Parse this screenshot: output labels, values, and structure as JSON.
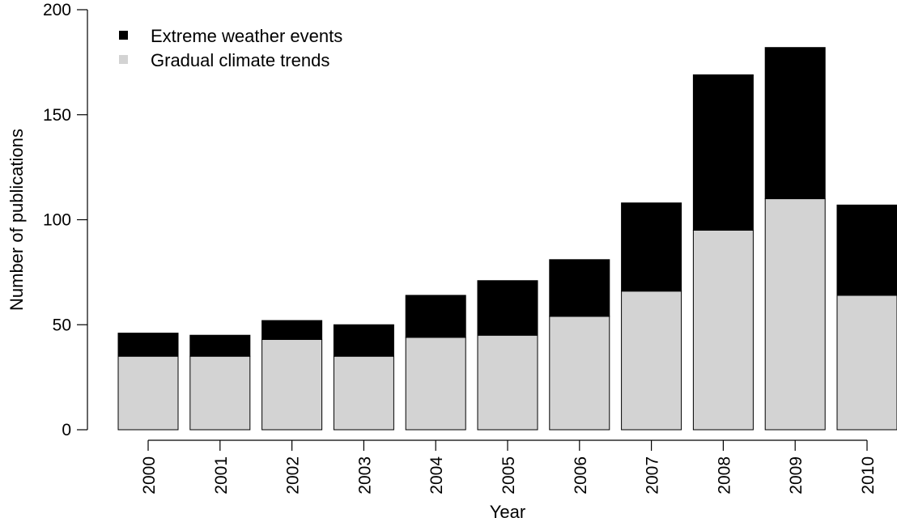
{
  "chart_data": {
    "type": "bar",
    "stacked": true,
    "categories": [
      "2000",
      "2001",
      "2002",
      "2003",
      "2004",
      "2005",
      "2006",
      "2007",
      "2008",
      "2009",
      "2010"
    ],
    "series": [
      {
        "name": "Gradual climate trends",
        "color": "#d3d3d3",
        "values": [
          35,
          35,
          43,
          35,
          44,
          45,
          54,
          66,
          95,
          110,
          64
        ]
      },
      {
        "name": "Extreme weather events",
        "color": "#000000",
        "values": [
          11,
          10,
          9,
          15,
          20,
          26,
          27,
          42,
          74,
          72,
          43
        ]
      }
    ],
    "legend_order": [
      "Extreme weather events",
      "Gradual climate trends"
    ],
    "legend_position": "top-left",
    "xlabel": "Year",
    "ylabel": "Number of publications",
    "ylim": [
      0,
      200
    ],
    "yticks": [
      0,
      50,
      100,
      150,
      200
    ],
    "grid": false
  }
}
